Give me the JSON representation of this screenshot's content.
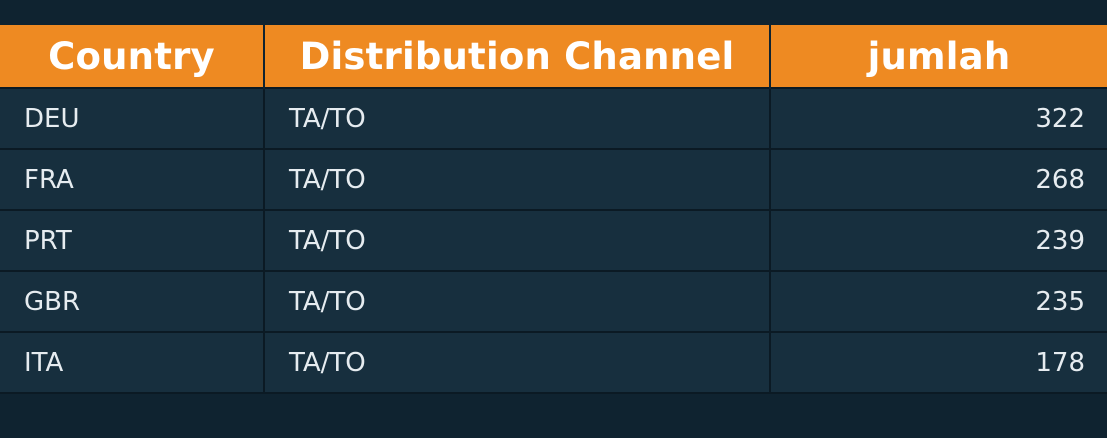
{
  "table": {
    "columns": [
      "Country",
      "Distribution Channel",
      "jumlah"
    ],
    "rows": [
      [
        "DEU",
        "TA/TO",
        "322"
      ],
      [
        "FRA",
        "TA/TO",
        "268"
      ],
      [
        "PRT",
        "TA/TO",
        "239"
      ],
      [
        "GBR",
        "TA/TO",
        "235"
      ],
      [
        "ITA",
        "TA/TO",
        "178"
      ]
    ]
  },
  "colors": {
    "background": "#0f2330",
    "header": "#ee8a22",
    "row": "#172f3e",
    "text": "#e6ecf0"
  }
}
